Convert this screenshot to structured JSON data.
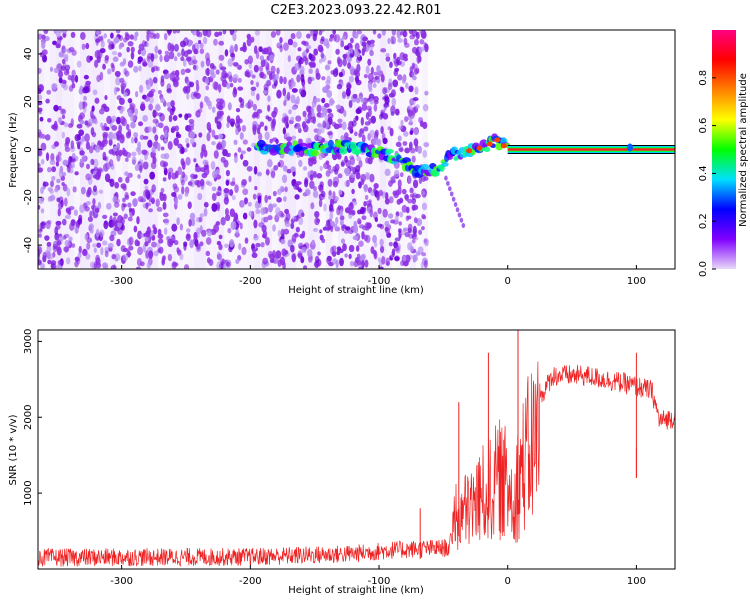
{
  "figure_title": "C2E3.2023.093.22.42.R01",
  "chart_data": [
    {
      "type": "heatmap",
      "xlabel": "Height of straight line (km)",
      "ylabel": "Frequency (Hz)",
      "xlim": [
        -365,
        130
      ],
      "ylim": [
        -50,
        50
      ],
      "xticks": [
        -300,
        -200,
        -100,
        0,
        100
      ],
      "yticks": [
        -40,
        -20,
        0,
        20,
        40
      ],
      "grid": false,
      "colorbar": {
        "label": "Normalized spectral amplitude",
        "range": [
          0,
          1
        ],
        "ticks": [
          "0.0",
          "0.2",
          "0.4",
          "0.6",
          "0.8"
        ],
        "colors": [
          "#e8d8f8",
          "#8000ff",
          "#0000ff",
          "#00e0ff",
          "#00ff00",
          "#ffff00",
          "#ff8000",
          "#ff0000",
          "#ff0080"
        ]
      },
      "features": {
        "noise_region_x": [
          -365,
          -63
        ],
        "signal_track": [
          {
            "x": -195,
            "y": 0.5
          },
          {
            "x": -170,
            "y": 0.5
          },
          {
            "x": -150,
            "y": 0
          },
          {
            "x": -125,
            "y": 1
          },
          {
            "x": -100,
            "y": -1
          },
          {
            "x": -85,
            "y": -4
          },
          {
            "x": -70,
            "y": -9
          },
          {
            "x": -55,
            "y": -8
          },
          {
            "x": -45,
            "y": -3
          },
          {
            "x": -35,
            "y": -1
          },
          {
            "x": -25,
            "y": 0
          },
          {
            "x": -15,
            "y": 2
          },
          {
            "x": -8,
            "y": 4
          },
          {
            "x": 0,
            "y": 0
          }
        ],
        "carrier_line_x": [
          0,
          130
        ],
        "carrier_line_y": 0,
        "blob_x": 95
      }
    },
    {
      "type": "line",
      "xlabel": "Height of straight line (km)",
      "ylabel": "SNR (10 * v/v)",
      "xlim": [
        -365,
        130
      ],
      "ylim": [
        0,
        3150
      ],
      "xticks": [
        -300,
        -200,
        -100,
        0,
        100
      ],
      "yticks": [
        1000,
        2000,
        3000
      ],
      "grid": false,
      "series_color": "#ee2222",
      "envelope": [
        {
          "x": -365,
          "y": 150
        },
        {
          "x": -200,
          "y": 160
        },
        {
          "x": -120,
          "y": 200
        },
        {
          "x": -90,
          "y": 250
        },
        {
          "x": -45,
          "y": 280
        },
        {
          "x": -42,
          "y": 800
        },
        {
          "x": -30,
          "y": 1000
        },
        {
          "x": -15,
          "y": 1300
        },
        {
          "x": -5,
          "y": 1500
        },
        {
          "x": 5,
          "y": 1200
        },
        {
          "x": 10,
          "y": 1600
        },
        {
          "x": 20,
          "y": 2100
        },
        {
          "x": 35,
          "y": 2550
        },
        {
          "x": 60,
          "y": 2550
        },
        {
          "x": 90,
          "y": 2450
        },
        {
          "x": 112,
          "y": 2350
        },
        {
          "x": 118,
          "y": 1950
        },
        {
          "x": 130,
          "y": 2000
        }
      ],
      "spikes": [
        {
          "x": -68,
          "y": 800
        },
        {
          "x": -38,
          "y": 2200
        },
        {
          "x": -15,
          "y": 2850
        },
        {
          "x": 8,
          "y": 3150
        },
        {
          "x": 100,
          "y": 2850
        },
        {
          "x": 100,
          "y": 1600
        }
      ]
    }
  ]
}
